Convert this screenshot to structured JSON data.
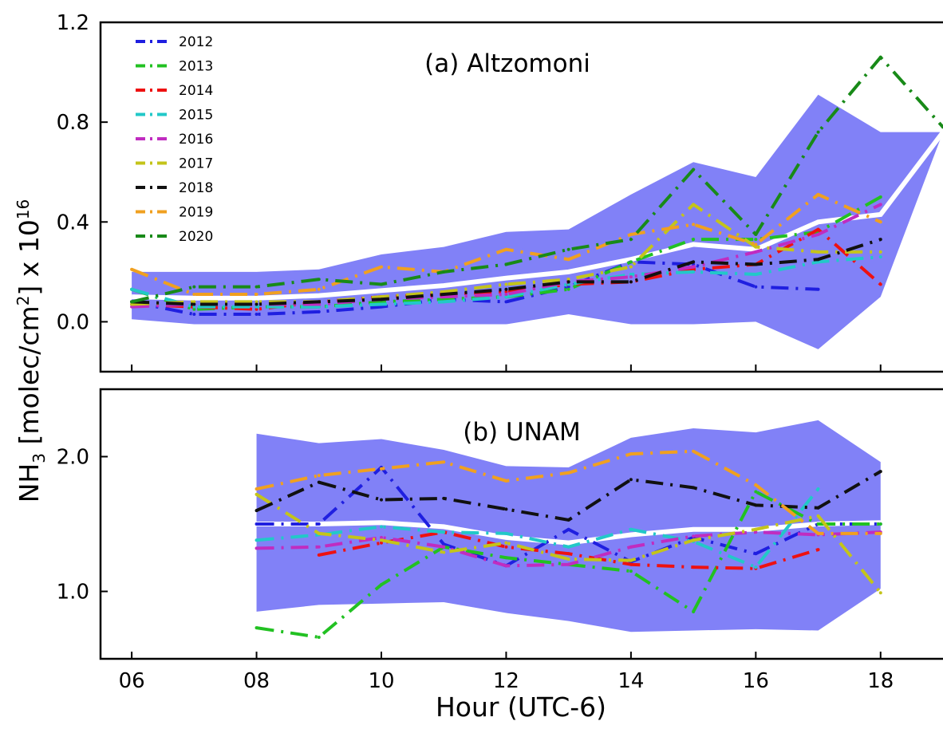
{
  "chart_data": {
    "type": "line",
    "xlabel": "Hour  (UTC-6)",
    "ylabel": {
      "prefix": "NH",
      "sub": "3",
      "mid": "  [molec/cm",
      "sup2": "2",
      "suffix": "] x 10",
      "sup": "16"
    },
    "x_ticks": [
      "06",
      "08",
      "10",
      "12",
      "14",
      "16",
      "18"
    ],
    "xlim": [
      5.5,
      19
    ],
    "legend": {
      "placement": "top-left",
      "entries": [
        "2012",
        "2013",
        "2014",
        "2015",
        "2016",
        "2017",
        "2018",
        "2019",
        "2020"
      ]
    },
    "colors": {
      "2012": "#1f1fe0",
      "2013": "#22c122",
      "2014": "#ee1111",
      "2015": "#22c8c8",
      "2016": "#c02cc0",
      "2017": "#c4c41a",
      "2018": "#111111",
      "2019": "#f0a020",
      "2020": "#188a18",
      "band": "#8181f7",
      "mean": "#ffffff"
    },
    "panels": [
      {
        "id": "a",
        "title": "(a) Altzomoni",
        "ylim": [
          -0.2,
          1.2
        ],
        "y_ticks": [
          "0.0",
          "0.4",
          "0.8",
          "1.2"
        ],
        "y_tick_values": [
          0.0,
          0.4,
          0.8,
          1.2
        ],
        "band": {
          "x": [
            6,
            7,
            8,
            9,
            10,
            11,
            12,
            13,
            14,
            15,
            16,
            17,
            18,
            19
          ],
          "upper": [
            0.2,
            0.2,
            0.2,
            0.21,
            0.27,
            0.3,
            0.36,
            0.37,
            0.51,
            0.64,
            0.58,
            0.91,
            0.76,
            0.76
          ],
          "lower": [
            0.01,
            -0.01,
            -0.01,
            -0.01,
            -0.01,
            -0.01,
            -0.01,
            0.03,
            -0.01,
            -0.01,
            0.0,
            -0.11,
            0.1,
            0.76
          ]
        },
        "mean": {
          "x": [
            6,
            7,
            8,
            9,
            10,
            11,
            12,
            13,
            14,
            15,
            16,
            17,
            18,
            19
          ],
          "y": [
            0.1,
            0.095,
            0.095,
            0.105,
            0.125,
            0.145,
            0.175,
            0.2,
            0.25,
            0.31,
            0.29,
            0.4,
            0.43,
            0.76
          ]
        },
        "series": [
          {
            "name": "2012",
            "x": [
              6,
              7,
              8,
              9,
              10,
              11,
              12,
              13,
              14,
              15,
              16,
              17
            ],
            "y": [
              0.08,
              0.03,
              0.03,
              0.04,
              0.06,
              0.09,
              0.08,
              0.14,
              0.24,
              0.23,
              0.14,
              0.13
            ]
          },
          {
            "name": "2013",
            "x": [
              6,
              7,
              8,
              9,
              10,
              11,
              12,
              13,
              14,
              15,
              16,
              17,
              18
            ],
            "y": [
              0.13,
              0.05,
              0.06,
              0.06,
              0.08,
              0.09,
              0.1,
              0.13,
              0.24,
              0.33,
              0.33,
              0.36,
              0.5
            ]
          },
          {
            "name": "2014",
            "x": [
              6,
              7,
              8,
              9,
              10,
              11,
              12,
              13,
              14,
              15,
              16,
              17,
              18
            ],
            "y": [
              0.07,
              0.06,
              0.05,
              0.08,
              0.1,
              0.11,
              0.12,
              0.15,
              0.16,
              0.21,
              0.23,
              0.37,
              0.15
            ]
          },
          {
            "name": "2015",
            "x": [
              6,
              7,
              8,
              9,
              10,
              11,
              12,
              13,
              14,
              15,
              16,
              17,
              18
            ],
            "y": [
              0.13,
              0.06,
              0.06,
              0.06,
              0.07,
              0.08,
              0.1,
              0.15,
              0.19,
              0.2,
              0.19,
              0.24,
              0.26
            ]
          },
          {
            "name": "2016",
            "x": [
              6,
              7,
              8,
              9,
              10,
              11,
              12,
              13,
              14,
              15,
              16,
              17,
              18
            ],
            "y": [
              0.06,
              0.07,
              0.07,
              0.07,
              0.09,
              0.1,
              0.11,
              0.16,
              0.18,
              0.22,
              0.28,
              0.35,
              0.47
            ]
          },
          {
            "name": "2017",
            "x": [
              6,
              7,
              8,
              9,
              10,
              11,
              12,
              13,
              14,
              15,
              16,
              17,
              18
            ],
            "y": [
              0.07,
              0.08,
              0.08,
              0.08,
              0.1,
              0.12,
              0.15,
              0.17,
              0.22,
              0.47,
              0.3,
              0.28,
              0.28
            ]
          },
          {
            "name": "2018",
            "x": [
              6,
              7,
              8,
              9,
              10,
              11,
              12,
              13,
              14,
              15,
              16,
              17,
              18
            ],
            "y": [
              0.08,
              0.07,
              0.07,
              0.08,
              0.09,
              0.11,
              0.13,
              0.16,
              0.16,
              0.24,
              0.23,
              0.25,
              0.33
            ]
          },
          {
            "name": "2019",
            "x": [
              6,
              7,
              8,
              9,
              10,
              11,
              12,
              13,
              14,
              15,
              16,
              17,
              18
            ],
            "y": [
              0.21,
              0.11,
              0.11,
              0.13,
              0.22,
              0.2,
              0.29,
              0.25,
              0.35,
              0.39,
              0.31,
              0.51,
              0.4
            ]
          },
          {
            "name": "2020",
            "x": [
              6,
              7,
              8,
              9,
              10,
              11,
              12,
              13,
              14,
              15,
              16,
              17,
              18,
              19
            ],
            "y": [
              0.08,
              0.14,
              0.14,
              0.17,
              0.15,
              0.2,
              0.23,
              0.29,
              0.33,
              0.61,
              0.35,
              0.76,
              1.06,
              0.78
            ]
          }
        ]
      },
      {
        "id": "b",
        "title": "(b) UNAM",
        "ylim": [
          0.5,
          2.5
        ],
        "y_ticks": [
          "1.0",
          "2.0"
        ],
        "y_tick_values": [
          1.0,
          2.0
        ],
        "band": {
          "x": [
            8,
            9,
            10,
            11,
            12,
            13,
            14,
            15,
            16,
            17,
            18
          ],
          "upper": [
            2.17,
            2.1,
            2.13,
            2.05,
            1.93,
            1.92,
            2.14,
            2.21,
            2.18,
            2.27,
            1.96
          ],
          "lower": [
            0.85,
            0.9,
            0.91,
            0.92,
            0.84,
            0.78,
            0.7,
            0.71,
            0.72,
            0.71,
            1.02
          ]
        },
        "mean": {
          "x": [
            8,
            9,
            10,
            11,
            12,
            13,
            14,
            15,
            16,
            17,
            18
          ],
          "y": [
            1.5,
            1.5,
            1.51,
            1.48,
            1.4,
            1.36,
            1.42,
            1.46,
            1.46,
            1.5,
            1.51
          ]
        },
        "series": [
          {
            "name": "2012",
            "x": [
              8,
              9,
              10,
              11,
              12,
              13,
              14,
              15,
              16,
              17,
              18
            ],
            "y": [
              1.5,
              1.5,
              1.92,
              1.35,
              1.19,
              1.46,
              1.22,
              1.4,
              1.28,
              1.5,
              1.5
            ]
          },
          {
            "name": "2013",
            "x": [
              8,
              9,
              10,
              11,
              12,
              13,
              14,
              15,
              16,
              17,
              18
            ],
            "y": [
              0.73,
              0.66,
              1.05,
              1.33,
              1.25,
              1.2,
              1.15,
              0.85,
              1.74,
              1.5,
              1.5
            ]
          },
          {
            "name": "2014",
            "x": [
              9,
              10,
              11,
              12,
              13,
              14,
              15,
              16,
              17
            ],
            "y": [
              1.27,
              1.36,
              1.44,
              1.33,
              1.28,
              1.2,
              1.18,
              1.17,
              1.31
            ]
          },
          {
            "name": "2015",
            "x": [
              8,
              9,
              10,
              11,
              12,
              13,
              14,
              15,
              16,
              17
            ],
            "y": [
              1.38,
              1.42,
              1.48,
              1.44,
              1.43,
              1.33,
              1.46,
              1.37,
              1.18,
              1.76
            ]
          },
          {
            "name": "2016",
            "x": [
              8,
              9,
              10,
              11,
              12,
              13,
              14,
              15,
              16,
              17,
              18
            ],
            "y": [
              1.32,
              1.33,
              1.4,
              1.33,
              1.19,
              1.2,
              1.33,
              1.41,
              1.44,
              1.42,
              1.44
            ]
          },
          {
            "name": "2017",
            "x": [
              8,
              9,
              10,
              11,
              12,
              13,
              14,
              15,
              16,
              17,
              18
            ],
            "y": [
              1.72,
              1.43,
              1.38,
              1.29,
              1.36,
              1.24,
              1.23,
              1.38,
              1.46,
              1.56,
              0.99
            ]
          },
          {
            "name": "2018",
            "x": [
              8,
              9,
              10,
              11,
              12,
              13,
              14,
              15,
              16,
              17,
              18
            ],
            "y": [
              1.6,
              1.81,
              1.68,
              1.69,
              1.61,
              1.53,
              1.83,
              1.77,
              1.64,
              1.62,
              1.89
            ]
          },
          {
            "name": "2019",
            "x": [
              8,
              9,
              10,
              11,
              12,
              13,
              14,
              15,
              16,
              17,
              18
            ],
            "y": [
              1.76,
              1.86,
              1.91,
              1.96,
              1.82,
              1.88,
              2.02,
              2.04,
              1.79,
              1.43,
              1.43
            ]
          }
        ]
      }
    ]
  }
}
